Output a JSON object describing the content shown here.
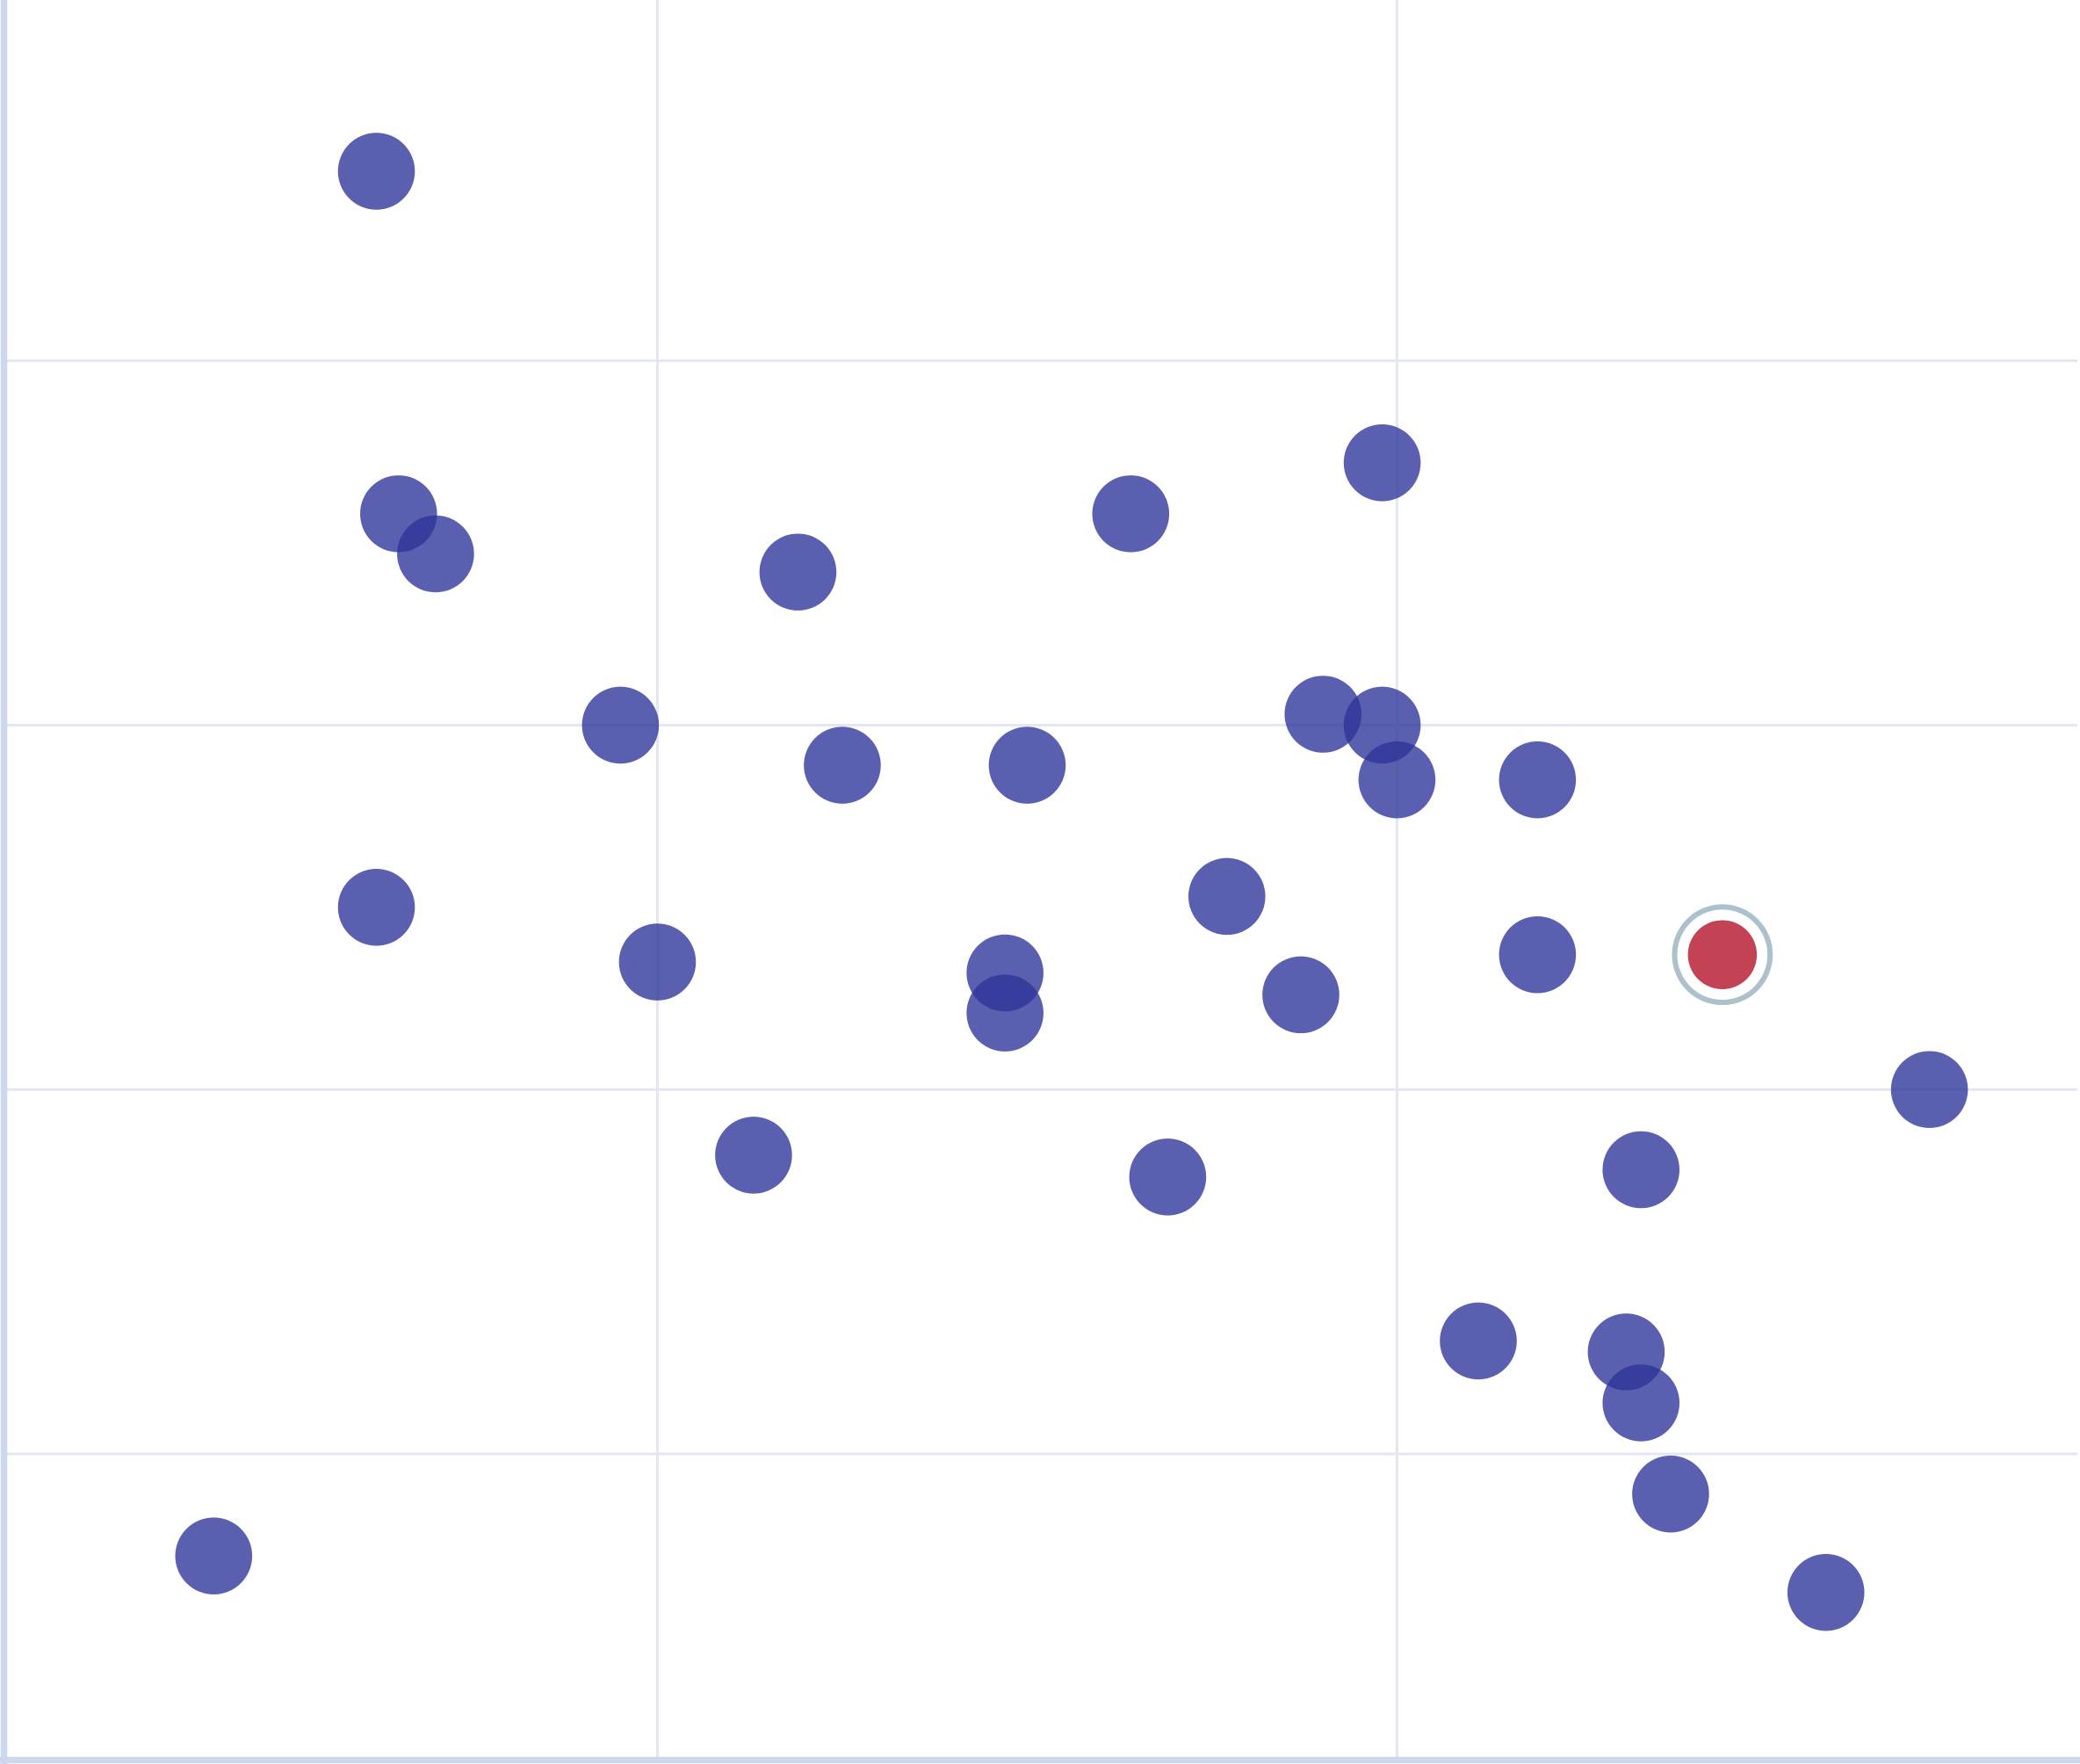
{
  "chart_data": {
    "type": "scatter",
    "title": "",
    "xlabel": "",
    "ylabel": "",
    "xlim": [
      0.12,
      2.92
    ],
    "ylim": [
      0.16,
      4.99
    ],
    "x_gridlines": [
      1,
      2
    ],
    "y_gridlines": [
      1,
      2,
      3,
      4
    ],
    "grid": true,
    "tick_labels_shown": false,
    "colors": {
      "point": "#2b3399",
      "highlight": "#c0394b",
      "highlight_ring": "#adc1cc",
      "grid": "#e3e7f2",
      "axis": "#cdd8ec"
    },
    "points": [
      {
        "x": 0.62,
        "y": 4.52
      },
      {
        "x": 0.65,
        "y": 3.58
      },
      {
        "x": 0.7,
        "y": 3.47
      },
      {
        "x": 1.19,
        "y": 3.42
      },
      {
        "x": 1.64,
        "y": 3.58
      },
      {
        "x": 1.98,
        "y": 3.72
      },
      {
        "x": 0.95,
        "y": 3.0
      },
      {
        "x": 1.25,
        "y": 2.89
      },
      {
        "x": 1.5,
        "y": 2.89
      },
      {
        "x": 1.9,
        "y": 3.03
      },
      {
        "x": 1.98,
        "y": 3.0
      },
      {
        "x": 2.0,
        "y": 2.85
      },
      {
        "x": 2.19,
        "y": 2.85
      },
      {
        "x": 0.62,
        "y": 2.5
      },
      {
        "x": 1.0,
        "y": 2.35
      },
      {
        "x": 1.47,
        "y": 2.32
      },
      {
        "x": 1.47,
        "y": 2.21
      },
      {
        "x": 1.77,
        "y": 2.53
      },
      {
        "x": 1.87,
        "y": 2.26
      },
      {
        "x": 2.19,
        "y": 2.37
      },
      {
        "x": 2.44,
        "y": 2.37,
        "highlighted": true
      },
      {
        "x": 2.72,
        "y": 2.0
      },
      {
        "x": 1.13,
        "y": 1.82
      },
      {
        "x": 1.69,
        "y": 1.76
      },
      {
        "x": 2.33,
        "y": 1.78
      },
      {
        "x": 2.11,
        "y": 1.31
      },
      {
        "x": 2.31,
        "y": 1.28
      },
      {
        "x": 2.33,
        "y": 1.14
      },
      {
        "x": 2.37,
        "y": 0.89
      },
      {
        "x": 0.4,
        "y": 0.72
      },
      {
        "x": 2.58,
        "y": 0.62
      }
    ]
  }
}
